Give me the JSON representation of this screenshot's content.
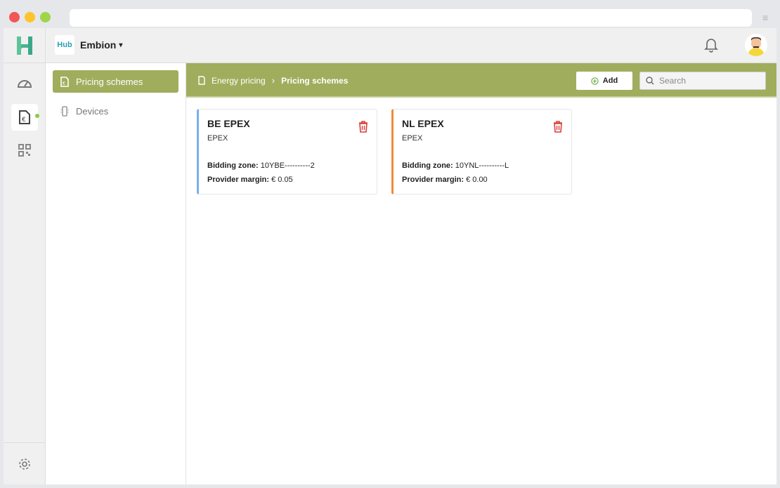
{
  "browser": {
    "url": ""
  },
  "org": {
    "logo_text": "Hub",
    "name": "Embion"
  },
  "sidebar": {
    "items": [
      {
        "label": "Pricing schemes",
        "active": true
      },
      {
        "label": "Devices",
        "active": false
      }
    ]
  },
  "breadcrumb": {
    "parent": "Energy pricing",
    "current": "Pricing schemes"
  },
  "toolbar": {
    "add_label": "Add",
    "search_placeholder": "Search"
  },
  "colors": {
    "accent": "#a0ad5d",
    "be": "#78aef0",
    "nl": "#ee8a3a",
    "delete": "#d9403a"
  },
  "cards": [
    {
      "title": "BE EPEX",
      "type": "EPEX",
      "zone_label": "Bidding zone:",
      "zone": "10YBE----------2",
      "margin_label": "Provider margin:",
      "margin": "€ 0.05"
    },
    {
      "title": "NL EPEX",
      "type": "EPEX",
      "zone_label": "Bidding zone:",
      "zone": "10YNL----------L",
      "margin_label": "Provider margin:",
      "margin": "€ 0.00"
    }
  ]
}
